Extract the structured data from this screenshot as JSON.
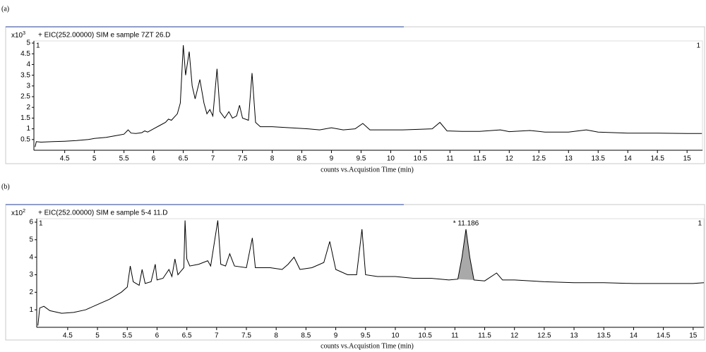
{
  "chart_data": [
    {
      "type": "line",
      "panel_label": "(a)",
      "subtitle": "+ EIC(252.00000) SIM e sample 7ZT 26.D",
      "y_multiplier": "x10",
      "y_multiplier_exp": "3",
      "corner_labels": [
        "1",
        "1"
      ],
      "x_label": "counts vs.Acquistion Time (min)",
      "color": "#000000",
      "xlim": [
        3.98,
        15.26
      ],
      "xticks": [
        4.5,
        5,
        5.5,
        6,
        6.5,
        7,
        7.5,
        8,
        8.5,
        9,
        9.5,
        10,
        10.5,
        11,
        11.5,
        12,
        12.5,
        13,
        13.5,
        14,
        14.5,
        15
      ],
      "ylim": [
        0,
        5.1
      ],
      "yticks": [
        0.5,
        1,
        1.5,
        2,
        2.5,
        3,
        3.5,
        4,
        4.5,
        5
      ],
      "x": [
        4.0,
        4.02,
        4.1,
        4.3,
        4.5,
        4.7,
        4.9,
        5.0,
        5.2,
        5.4,
        5.5,
        5.57,
        5.62,
        5.7,
        5.8,
        5.85,
        5.9,
        6.0,
        6.1,
        6.2,
        6.25,
        6.3,
        6.4,
        6.45,
        6.5,
        6.54,
        6.6,
        6.65,
        6.7,
        6.78,
        6.85,
        6.9,
        6.95,
        7.0,
        7.07,
        7.12,
        7.2,
        7.27,
        7.33,
        7.4,
        7.45,
        7.5,
        7.6,
        7.66,
        7.72,
        7.8,
        8.0,
        8.3,
        8.6,
        8.8,
        9.0,
        9.2,
        9.4,
        9.53,
        9.65,
        9.9,
        10.2,
        10.5,
        10.7,
        10.83,
        10.95,
        11.2,
        11.5,
        11.85,
        12.0,
        12.35,
        12.6,
        13.0,
        13.3,
        13.5,
        14.0,
        14.5,
        15.0,
        15.25
      ],
      "values": [
        0.15,
        0.4,
        0.38,
        0.4,
        0.42,
        0.45,
        0.5,
        0.55,
        0.6,
        0.7,
        0.75,
        0.95,
        0.8,
        0.78,
        0.82,
        0.9,
        0.85,
        1.0,
        1.15,
        1.3,
        1.45,
        1.4,
        1.7,
        2.2,
        4.9,
        3.5,
        4.6,
        3.0,
        2.4,
        3.3,
        2.2,
        1.7,
        1.9,
        1.6,
        3.8,
        1.8,
        1.5,
        1.8,
        1.5,
        1.6,
        2.1,
        1.5,
        1.4,
        3.6,
        1.3,
        1.1,
        1.1,
        1.05,
        1.0,
        0.95,
        1.05,
        0.95,
        1.0,
        1.25,
        0.95,
        0.95,
        0.95,
        0.98,
        1.0,
        1.3,
        0.9,
        0.88,
        0.88,
        0.95,
        0.87,
        0.92,
        0.85,
        0.85,
        0.95,
        0.85,
        0.8,
        0.8,
        0.78,
        0.78
      ]
    },
    {
      "type": "line",
      "panel_label": "(b)",
      "subtitle": "+ EIC(252.00000) SIM e sample 5-4  11.D",
      "y_multiplier": "x10",
      "y_multiplier_exp": "2",
      "corner_labels": [
        "1",
        "1"
      ],
      "x_label": "counts vs.Acquistion Time (min)",
      "color": "#000000",
      "annotation": "* 11.186",
      "shaded_range": [
        11.05,
        11.32
      ],
      "shade_color": "#a9a9a9",
      "xlim": [
        3.98,
        15.18
      ],
      "xticks": [
        4.5,
        5,
        5.5,
        6,
        6.5,
        7,
        7.5,
        8,
        8.5,
        9,
        9.5,
        10,
        10.5,
        11,
        11.5,
        12,
        12.5,
        13,
        13.5,
        14,
        14.5,
        15
      ],
      "ylim": [
        0,
        6.2
      ],
      "yticks": [
        1,
        2,
        3,
        4,
        5,
        6
      ],
      "x": [
        4.0,
        4.03,
        4.1,
        4.2,
        4.4,
        4.6,
        4.8,
        5.0,
        5.2,
        5.4,
        5.5,
        5.55,
        5.6,
        5.7,
        5.75,
        5.8,
        5.9,
        5.97,
        6.0,
        6.1,
        6.2,
        6.25,
        6.3,
        6.35,
        6.45,
        6.47,
        6.5,
        6.55,
        6.7,
        6.85,
        6.9,
        7.02,
        7.07,
        7.15,
        7.22,
        7.3,
        7.5,
        7.6,
        7.65,
        7.9,
        8.1,
        8.2,
        8.3,
        8.4,
        8.6,
        8.8,
        8.9,
        9.0,
        9.2,
        9.35,
        9.44,
        9.5,
        9.7,
        10.0,
        10.3,
        10.6,
        10.9,
        11.05,
        11.12,
        11.186,
        11.25,
        11.32,
        11.5,
        11.7,
        11.8,
        12.0,
        12.5,
        13.0,
        13.5,
        14.0,
        14.5,
        15.0,
        15.18
      ],
      "values": [
        0.1,
        1.1,
        1.2,
        0.95,
        0.8,
        0.85,
        1.0,
        1.3,
        1.6,
        2.0,
        2.3,
        3.5,
        2.6,
        2.4,
        3.3,
        2.5,
        2.6,
        3.6,
        2.7,
        2.8,
        3.3,
        2.9,
        3.9,
        3.0,
        3.4,
        6.1,
        3.9,
        3.5,
        3.6,
        3.8,
        3.5,
        6.1,
        3.6,
        3.5,
        4.2,
        3.5,
        3.4,
        5.1,
        3.4,
        3.4,
        3.3,
        3.6,
        4.0,
        3.3,
        3.4,
        3.7,
        4.9,
        3.3,
        3.0,
        3.0,
        5.6,
        3.0,
        2.9,
        2.9,
        2.8,
        2.8,
        2.7,
        2.75,
        4.0,
        5.6,
        4.0,
        2.7,
        2.65,
        3.1,
        2.7,
        2.7,
        2.6,
        2.55,
        2.55,
        2.5,
        2.5,
        2.5,
        2.55
      ]
    }
  ]
}
